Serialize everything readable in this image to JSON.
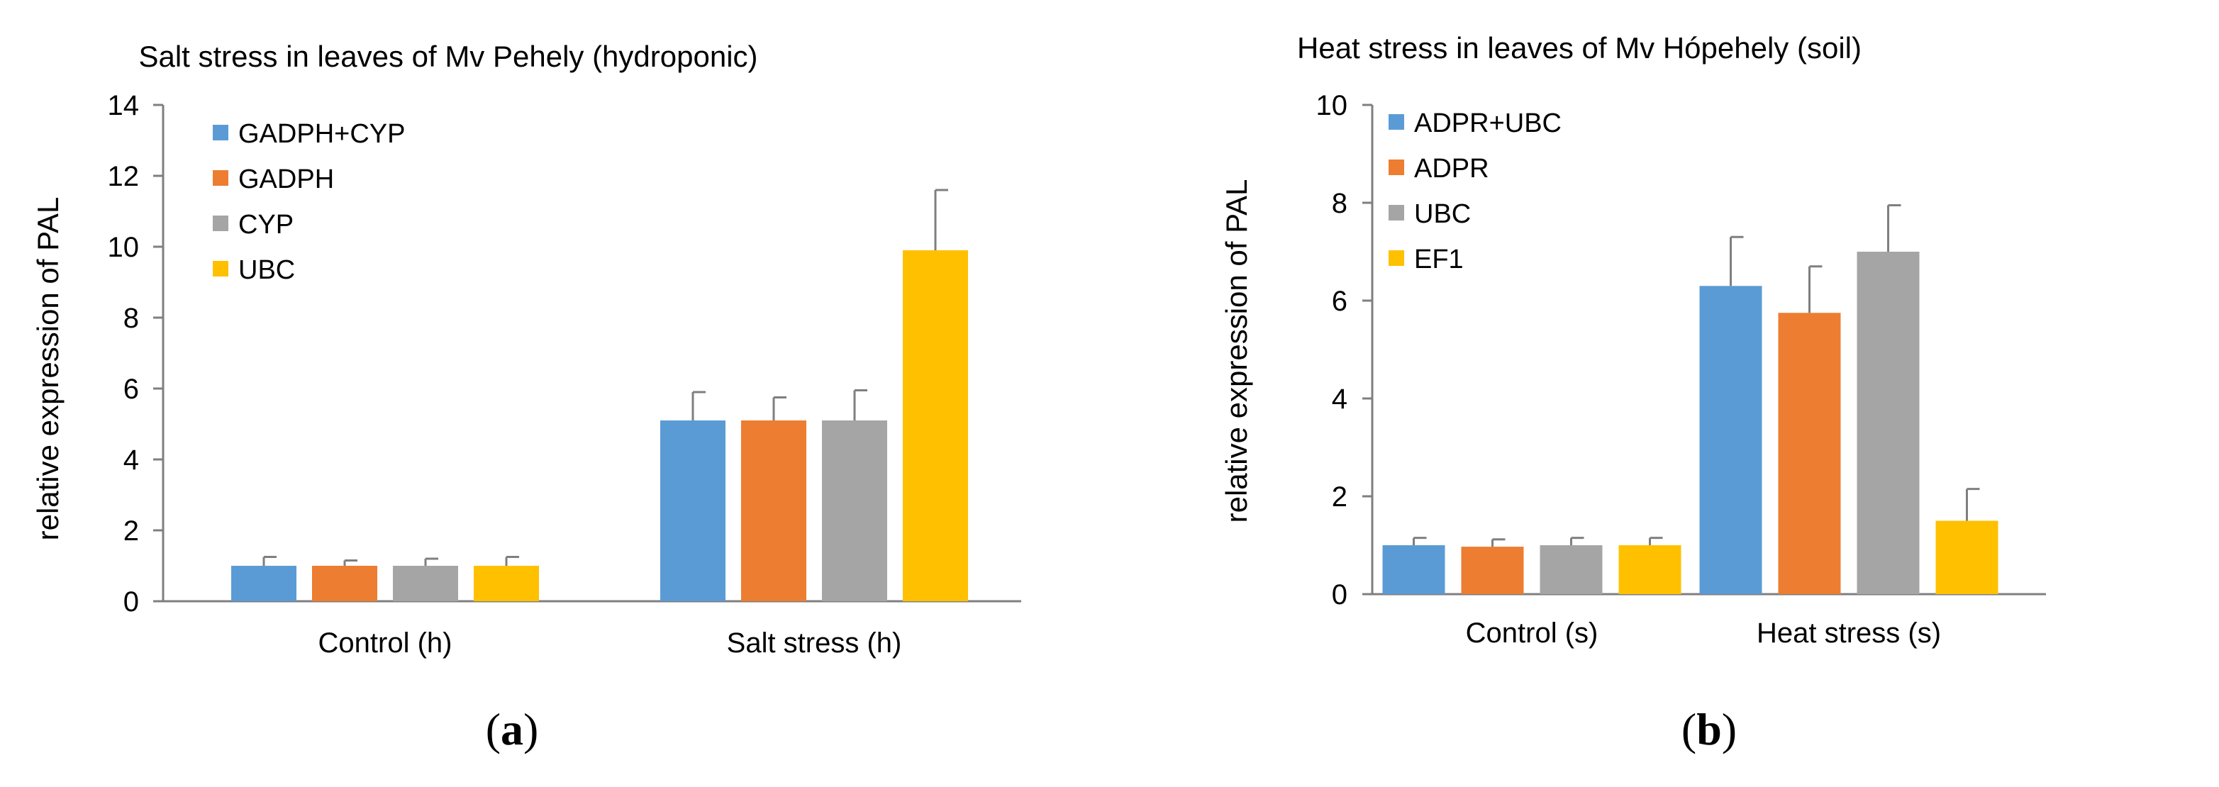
{
  "colors": {
    "blue": "#5B9BD5",
    "orange": "#ED7D31",
    "gray": "#A5A5A5",
    "yellow": "#FFC000",
    "axis": "#7f7f7f",
    "errbar": "#7f7f7f"
  },
  "chart_data": [
    {
      "type": "bar",
      "panel": "a",
      "title": "Salt stress in leaves of Mv Pehely (hydroponic)",
      "xlabel": "",
      "ylabel": "relative expression of PAL",
      "ylim": [
        0,
        14
      ],
      "yticks": [
        0,
        2,
        4,
        6,
        8,
        10,
        12,
        14
      ],
      "categories": [
        "Control (h)",
        "Salt stress (h)"
      ],
      "series": [
        {
          "name": "GADPH+CYP",
          "color": "#5B9BD5",
          "values": [
            1.0,
            5.1
          ],
          "errors": [
            0.25,
            0.8
          ]
        },
        {
          "name": "GADPH",
          "color": "#ED7D31",
          "values": [
            1.0,
            5.1
          ],
          "errors": [
            0.15,
            0.65
          ]
        },
        {
          "name": "CYP",
          "color": "#A5A5A5",
          "values": [
            1.0,
            5.1
          ],
          "errors": [
            0.2,
            0.85
          ]
        },
        {
          "name": "UBC",
          "color": "#FFC000",
          "values": [
            1.0,
            9.9
          ],
          "errors": [
            0.25,
            1.7
          ]
        }
      ],
      "legend": "top-left"
    },
    {
      "type": "bar",
      "panel": "b",
      "title": "Heat stress in leaves of Mv Hópehely (soil)",
      "xlabel": "",
      "ylabel": "relative expression of PAL",
      "ylim": [
        0,
        10
      ],
      "yticks": [
        0,
        2,
        4,
        6,
        8,
        10
      ],
      "categories": [
        "Control (s)",
        "Heat stress (s)"
      ],
      "series": [
        {
          "name": "ADPR+UBC",
          "color": "#5B9BD5",
          "values": [
            1.0,
            6.3
          ],
          "errors": [
            0.15,
            1.0
          ]
        },
        {
          "name": "ADPR",
          "color": "#ED7D31",
          "values": [
            0.97,
            5.75
          ],
          "errors": [
            0.15,
            0.95
          ]
        },
        {
          "name": "UBC",
          "color": "#A5A5A5",
          "values": [
            1.0,
            7.0
          ],
          "errors": [
            0.15,
            0.95
          ]
        },
        {
          "name": "EF1",
          "color": "#FFC000",
          "values": [
            1.0,
            1.5
          ],
          "errors": [
            0.15,
            0.65
          ]
        }
      ],
      "legend": "top-left"
    }
  ]
}
